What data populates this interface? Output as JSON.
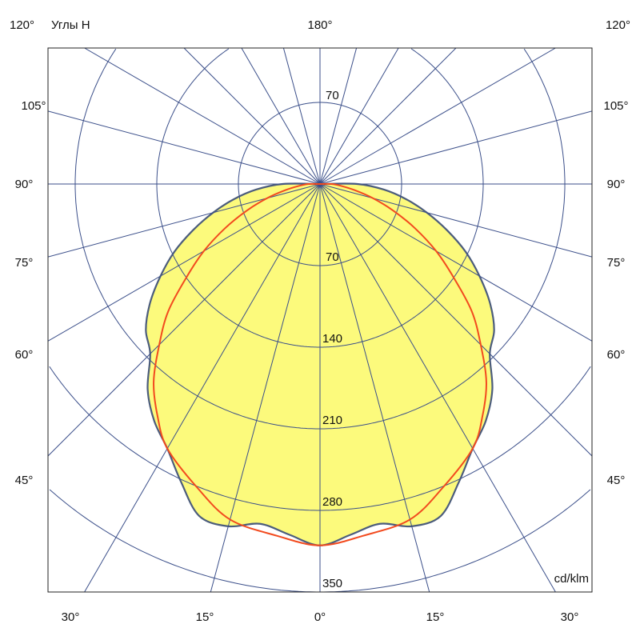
{
  "chart_data": {
    "type": "polar",
    "unit": "cd/klm",
    "header": {
      "left_angle": "120°",
      "plane_label": "Углы H",
      "top_angle": "180°",
      "right_angle": "120°"
    },
    "radial_ticks": [
      70,
      140,
      210,
      280,
      350
    ],
    "rlim": [
      0,
      350
    ],
    "angle_step_deg": 15,
    "grid": true,
    "side_angle_labels": [
      "105°",
      "90°",
      "75°",
      "60°",
      "45°"
    ],
    "bottom_angle_labels": [
      "30°",
      "15°",
      "0°",
      "15°",
      "30°"
    ],
    "colors": {
      "grid": "#3b4f8a",
      "fill": "#fcfa7c",
      "outline": "#4b5c7c",
      "series2": "#f24a1e"
    },
    "series": [
      {
        "angles": [
          0,
          5,
          10,
          15,
          20,
          25,
          30,
          35,
          40,
          45,
          50,
          55,
          60,
          65,
          70,
          75,
          80,
          85,
          90,
          95
        ],
        "values": [
          310,
          302,
          296,
          304,
          303,
          282,
          262,
          248,
          230,
          206,
          195,
          178,
          158,
          138,
          116,
          95,
          75,
          55,
          32,
          0
        ]
      },
      {
        "angles": [
          0,
          7,
          15,
          22,
          30,
          35,
          40,
          45,
          50,
          55,
          60,
          65,
          70,
          75,
          80,
          85,
          90,
          95
        ],
        "values": [
          310,
          304,
          298,
          281,
          262,
          243,
          222,
          195,
          170,
          140,
          115,
          90,
          67,
          47,
          30,
          18,
          10,
          0
        ]
      }
    ]
  }
}
